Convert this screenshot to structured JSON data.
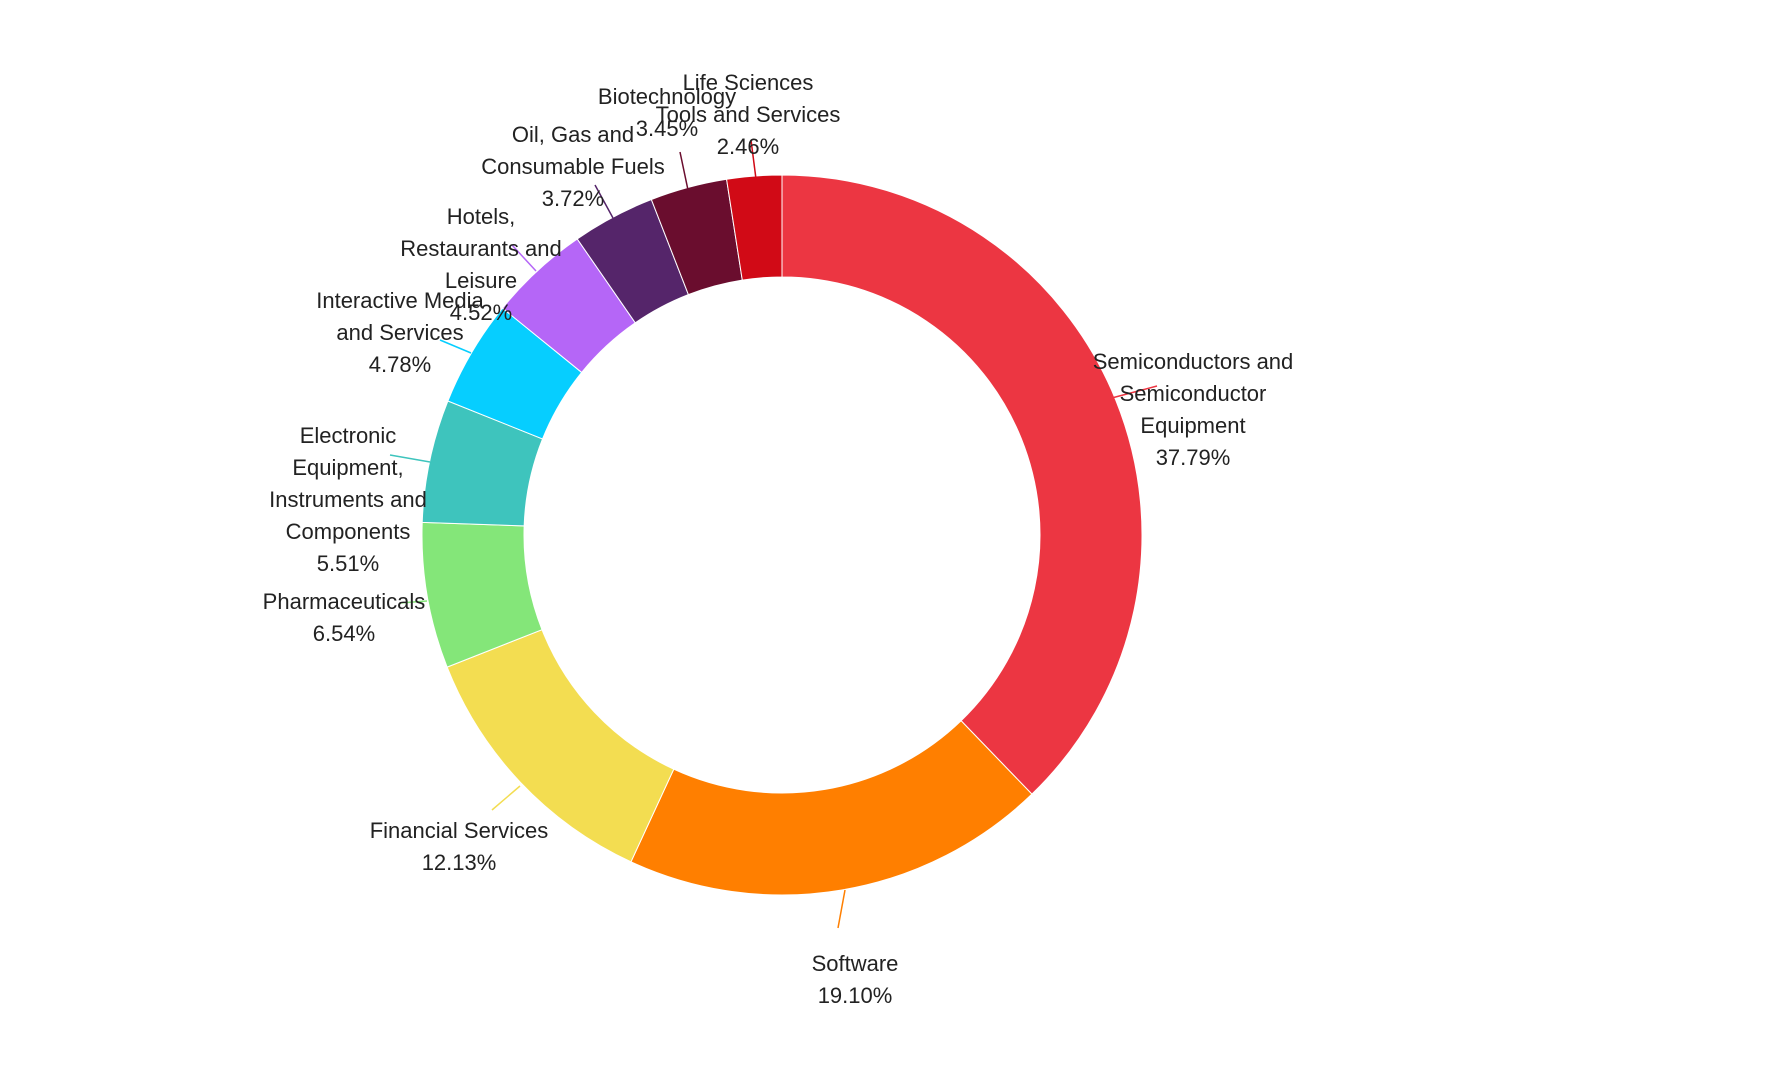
{
  "chart_data": {
    "type": "pie",
    "variant": "donut",
    "title": "",
    "slices": [
      {
        "label": "Semiconductors and Semiconductor Equipment",
        "lines": [
          "Semiconductors and",
          "Semiconductor",
          "Equipment"
        ],
        "value": 37.79,
        "value_label": "37.79%",
        "color": "#ec3642"
      },
      {
        "label": "Software",
        "lines": [
          "Software"
        ],
        "value": 19.1,
        "value_label": "19.10%",
        "color": "#ff7f00"
      },
      {
        "label": "Financial Services",
        "lines": [
          "Financial Services"
        ],
        "value": 12.13,
        "value_label": "12.13%",
        "color": "#f3dd51"
      },
      {
        "label": "Pharmaceuticals",
        "lines": [
          "Pharmaceuticals"
        ],
        "value": 6.54,
        "value_label": "6.54%",
        "color": "#84e679"
      },
      {
        "label": "Electronic Equipment, Instruments and Components",
        "lines": [
          "Electronic",
          "Equipment,",
          "Instruments and",
          "Components"
        ],
        "value": 5.51,
        "value_label": "5.51%",
        "color": "#3ec4bd"
      },
      {
        "label": "Interactive Media and Services",
        "lines": [
          "Interactive Media",
          "and Services"
        ],
        "value": 4.78,
        "value_label": "4.78%",
        "color": "#06ceff"
      },
      {
        "label": "Hotels, Restaurants and Leisure",
        "lines": [
          "Hotels,",
          "Restaurants and",
          "Leisure"
        ],
        "value": 4.52,
        "value_label": "4.52%",
        "color": "#b566f7"
      },
      {
        "label": "Oil, Gas and Consumable Fuels",
        "lines": [
          "Oil, Gas and",
          "Consumable Fuels"
        ],
        "value": 3.72,
        "value_label": "3.72%",
        "color": "#55256a"
      },
      {
        "label": "Biotechnology",
        "lines": [
          "Biotechnology"
        ],
        "value": 3.45,
        "value_label": "3.45%",
        "color": "#6a0d2e"
      },
      {
        "label": "Life Sciences Tools and Services",
        "lines": [
          "Life Sciences",
          "Tools and Services"
        ],
        "value": 2.46,
        "value_label": "2.46%",
        "color": "#d10a16"
      }
    ]
  }
}
